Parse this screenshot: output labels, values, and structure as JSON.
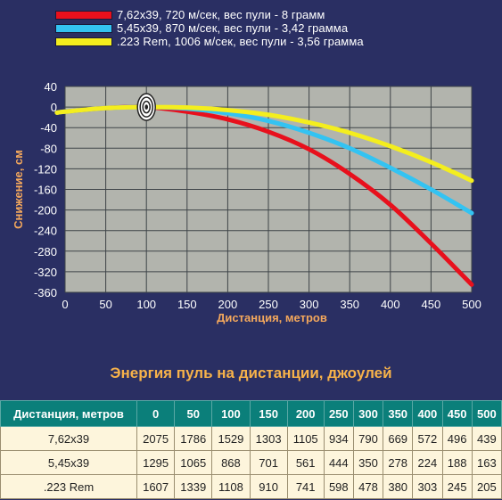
{
  "legend": [
    {
      "label": "7,62x39, 720 м/сек, вес пули - 8 грамм",
      "color": "#e8101c"
    },
    {
      "label": "5,45x39, 870 м/сек, вес пули - 3,42 грамма",
      "color": "#33c3f2"
    },
    {
      "label": ".223 Rem, 1006 м/сек, вес пули - 3,56 грамма",
      "color": "#f4ee1e"
    }
  ],
  "energy_table": {
    "title": "Энергия пуль на дистанции, джоулей",
    "header": "Дистанция, метров",
    "distances": [
      "0",
      "50",
      "100",
      "150",
      "200",
      "250",
      "300",
      "350",
      "400",
      "450",
      "500"
    ],
    "rows": [
      {
        "name": "7,62x39",
        "values": [
          "2075",
          "1786",
          "1529",
          "1303",
          "1105",
          "934",
          "790",
          "669",
          "572",
          "496",
          "439"
        ]
      },
      {
        "name": "5,45x39",
        "values": [
          "1295",
          "1065",
          "868",
          "701",
          "561",
          "444",
          "350",
          "278",
          "224",
          "188",
          "163"
        ]
      },
      {
        "name": ".223 Rem",
        "values": [
          "1607",
          "1339",
          "1108",
          "910",
          "741",
          "598",
          "478",
          "380",
          "303",
          "245",
          "205"
        ]
      }
    ]
  },
  "chart_data": {
    "type": "line",
    "xlabel": "Дистанция, метров",
    "ylabel": "Снижение, см",
    "xlim": [
      0,
      500
    ],
    "ylim": [
      -360,
      40
    ],
    "xticks": [
      0,
      50,
      100,
      150,
      200,
      250,
      300,
      350,
      400,
      450,
      500
    ],
    "yticks": [
      40,
      0,
      -40,
      -80,
      -120,
      -160,
      -200,
      -240,
      -280,
      -320,
      -360
    ],
    "grid": true,
    "legend_position": "top-left",
    "zero_marker": {
      "x": 100,
      "y": 0,
      "icon": "target-icon"
    },
    "colors": {
      "background": "#2a2f63",
      "plot_area": "#b2b4ad",
      "grid": "#3e4448",
      "axis_text": "#ffffff",
      "label_text": "#f4a85c"
    },
    "series": [
      {
        "name": "7,62x39, 720 м/сек, вес пули - 8 грамм",
        "color": "#e8101c",
        "x": [
          -10,
          0,
          50,
          100,
          150,
          200,
          250,
          300,
          350,
          400,
          450,
          500
        ],
        "y": [
          -11,
          -9,
          -2,
          0,
          -9,
          -24,
          -48,
          -82,
          -130,
          -190,
          -265,
          -345
        ]
      },
      {
        "name": "5,45x39, 870 м/сек, вес пули - 3,42 грамма",
        "color": "#33c3f2",
        "x": [
          -10,
          0,
          50,
          100,
          150,
          200,
          250,
          300,
          350,
          400,
          450,
          500
        ],
        "y": [
          -11,
          -9,
          -2,
          0,
          -3,
          -12,
          -27,
          -50,
          -80,
          -118,
          -160,
          -206
        ]
      },
      {
        "name": ".223 Rem, 1006 м/сек, вес пули - 3,56 грамма",
        "color": "#f4ee1e",
        "x": [
          -10,
          0,
          50,
          100,
          150,
          200,
          250,
          300,
          350,
          400,
          450,
          500
        ],
        "y": [
          -11,
          -9,
          -2,
          0,
          -1,
          -6,
          -15,
          -30,
          -50,
          -76,
          -107,
          -143
        ]
      }
    ]
  }
}
